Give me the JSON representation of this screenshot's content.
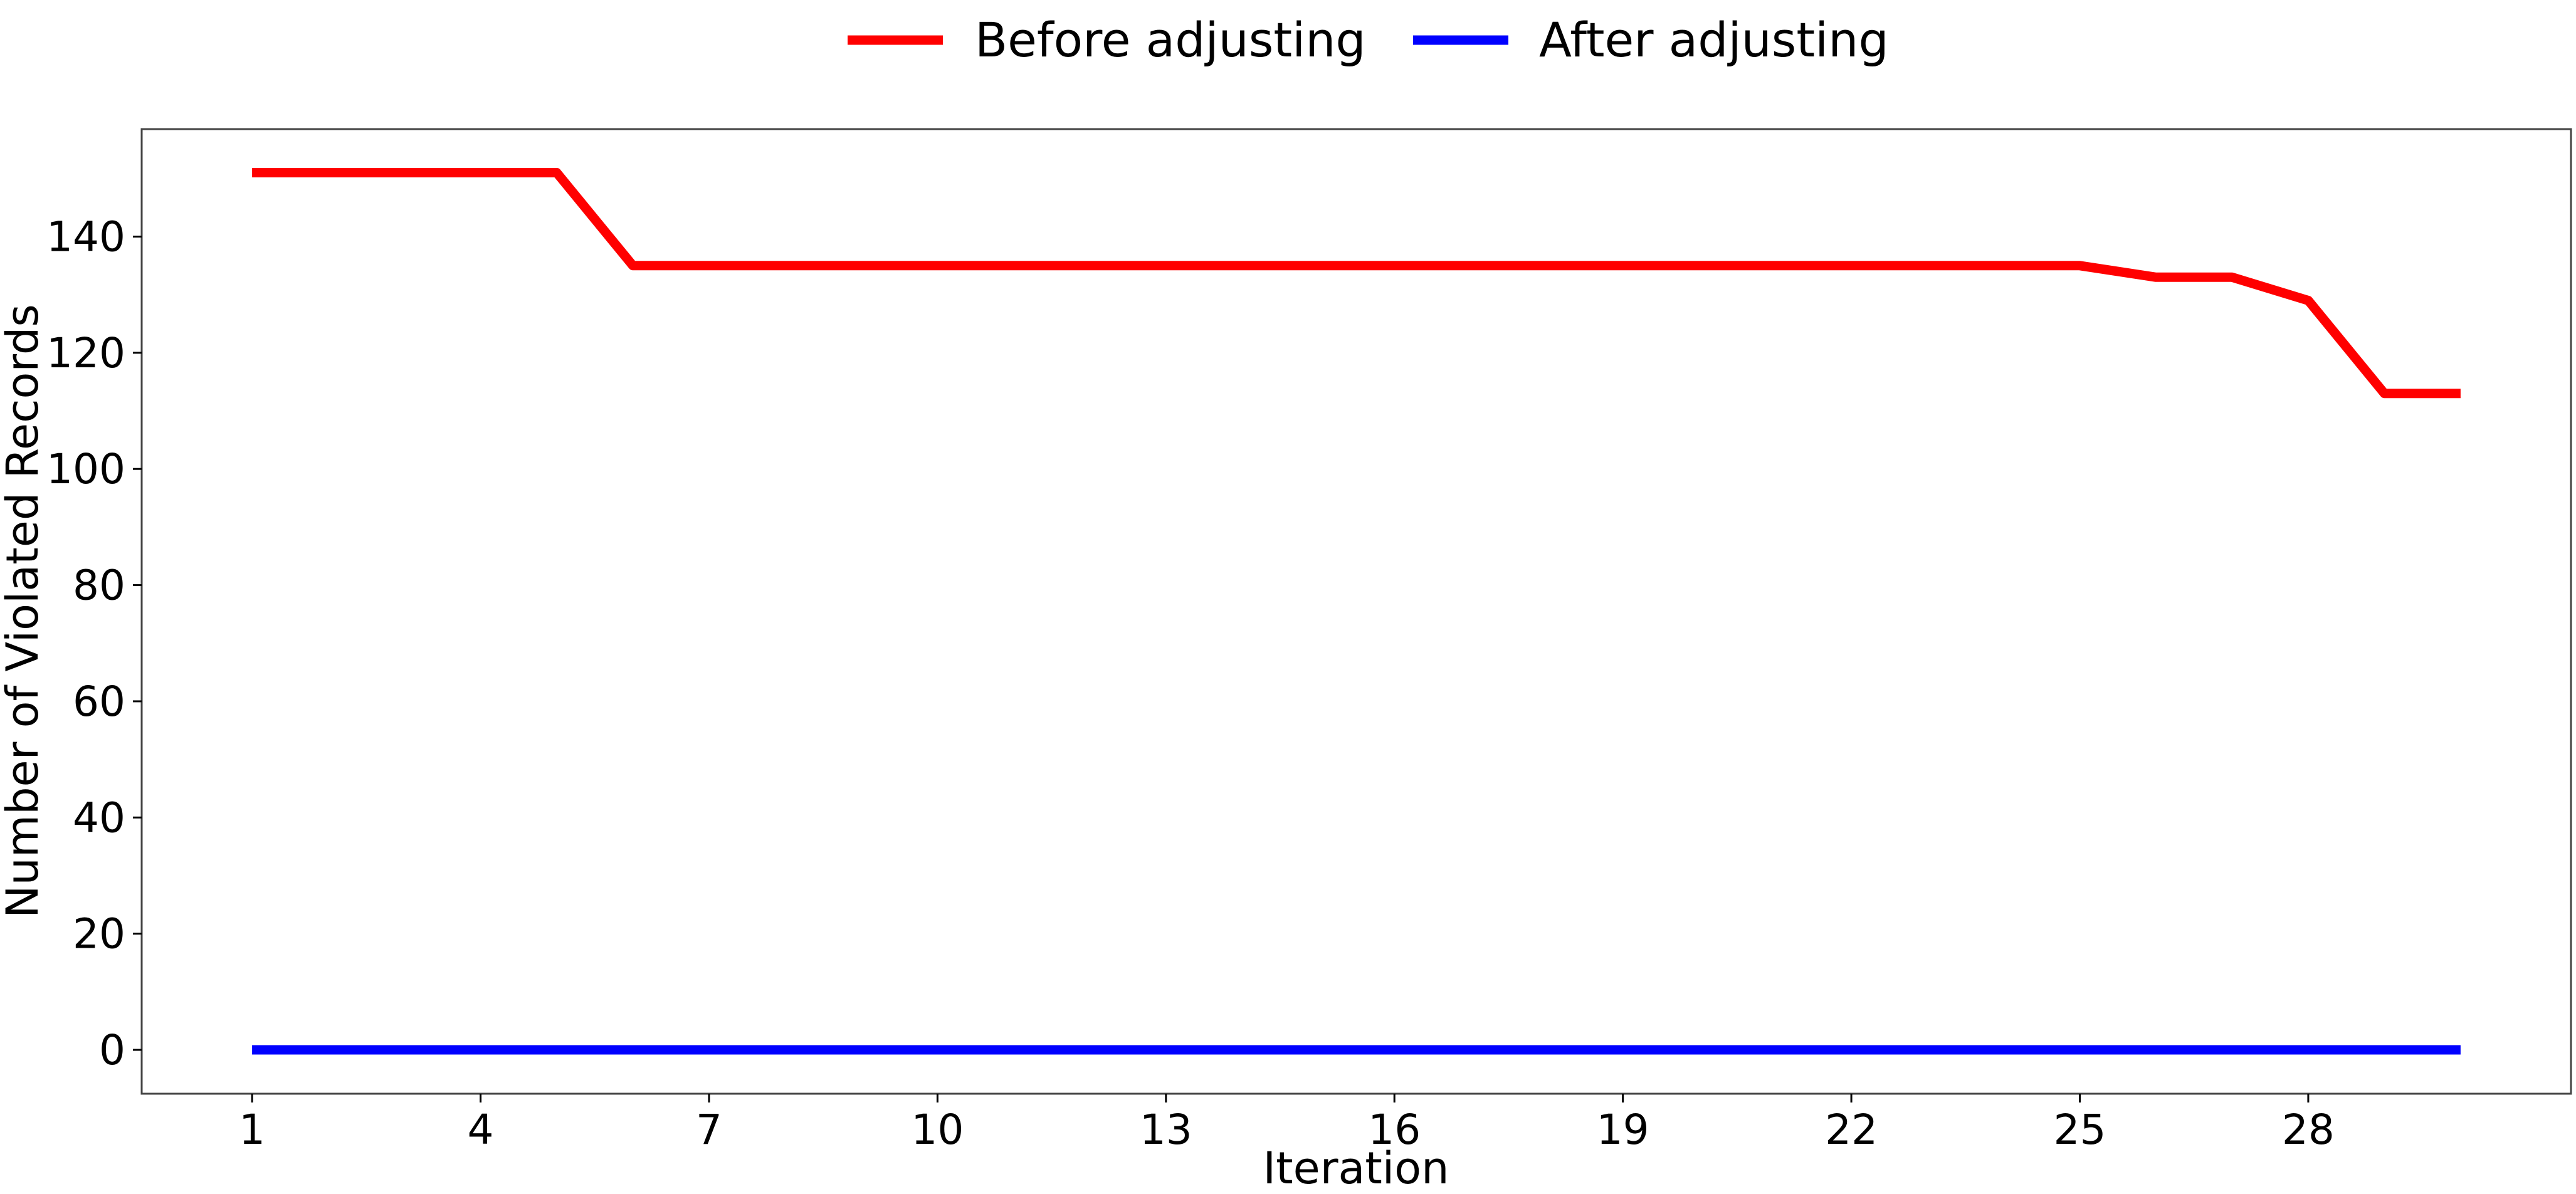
{
  "chart_data": {
    "type": "line",
    "xlabel": "Iteration",
    "ylabel": "Number of Violated Records",
    "x": [
      1,
      2,
      3,
      4,
      5,
      6,
      7,
      8,
      9,
      10,
      11,
      12,
      13,
      14,
      15,
      16,
      17,
      18,
      19,
      20,
      21,
      22,
      23,
      24,
      25,
      26,
      27,
      28,
      29,
      30
    ],
    "x_ticks": [
      1,
      4,
      7,
      10,
      13,
      16,
      19,
      22,
      25,
      28
    ],
    "y_ticks": [
      0,
      20,
      40,
      60,
      80,
      100,
      120,
      140
    ],
    "xlim": [
      -0.45,
      31.45
    ],
    "ylim": [
      -7.55,
      158.5
    ],
    "grid": false,
    "legend_position": "top-center",
    "series": [
      {
        "name": "Before adjusting",
        "color": "#ff0000",
        "values": [
          151,
          151,
          151,
          151,
          151,
          135,
          135,
          135,
          135,
          135,
          135,
          135,
          135,
          135,
          135,
          135,
          135,
          135,
          135,
          135,
          135,
          135,
          135,
          135,
          135,
          133,
          133,
          129,
          113,
          113
        ]
      },
      {
        "name": "After adjusting",
        "color": "#0000ff",
        "values": [
          0,
          0,
          0,
          0,
          0,
          0,
          0,
          0,
          0,
          0,
          0,
          0,
          0,
          0,
          0,
          0,
          0,
          0,
          0,
          0,
          0,
          0,
          0,
          0,
          0,
          0,
          0,
          0,
          0,
          0
        ]
      }
    ]
  }
}
